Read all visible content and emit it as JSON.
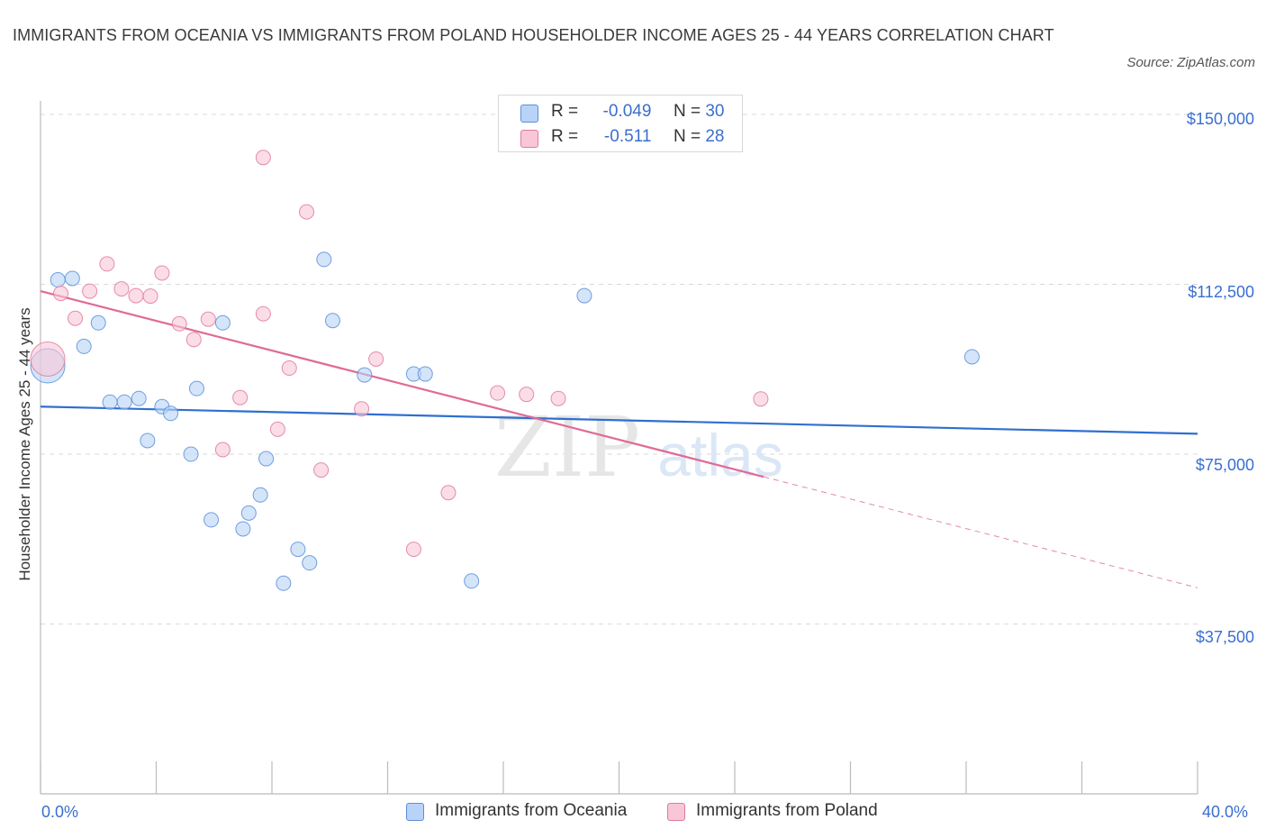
{
  "title": "IMMIGRANTS FROM OCEANIA VS IMMIGRANTS FROM POLAND HOUSEHOLDER INCOME AGES 25 - 44 YEARS CORRELATION CHART",
  "source": "Source: ZipAtlas.com",
  "watermark": {
    "zip": "ZIP",
    "atlas": "atlas"
  },
  "legend": {
    "r_label": "R =",
    "n_label": "N =",
    "rows": [
      {
        "r": "-0.049",
        "n": "30"
      },
      {
        "r": "-0.511",
        "n": "28"
      }
    ]
  },
  "colors": {
    "oceania_fill": "#b8d3f7",
    "oceania_stroke": "#5a8fd8",
    "oceania_line": "#2f6fd0",
    "poland_fill": "#f8c6d6",
    "poland_stroke": "#e07aa0",
    "poland_line": "#e06a96",
    "axis_text": "#3a6fd0"
  },
  "chart_data": {
    "type": "scatter",
    "title": "IMMIGRANTS FROM OCEANIA VS IMMIGRANTS FROM POLAND HOUSEHOLDER INCOME AGES 25 - 44 YEARS CORRELATION CHART",
    "xlabel": "",
    "ylabel": "Householder Income Ages 25 - 44 years",
    "xlim": [
      0,
      40
    ],
    "ylim": [
      0,
      152000
    ],
    "x_tick_labels": [
      "0.0%",
      "40.0%"
    ],
    "y_ticks": [
      37500,
      75000,
      112500,
      150000
    ],
    "y_tick_labels": [
      "$37,500",
      "$75,000",
      "$112,500",
      "$150,000"
    ],
    "grid": true,
    "legend_placement": "top-center",
    "series": [
      {
        "name": "Immigrants from Oceania",
        "r": -0.049,
        "n": 30,
        "trend": {
          "x": [
            0,
            40
          ],
          "y": [
            85500,
            79500
          ]
        },
        "points": [
          {
            "x": 0.25,
            "y": 94500,
            "big": true
          },
          {
            "x": 0.6,
            "y": 113500
          },
          {
            "x": 1.1,
            "y": 113800
          },
          {
            "x": 2.0,
            "y": 104000
          },
          {
            "x": 1.5,
            "y": 98800
          },
          {
            "x": 2.4,
            "y": 86500
          },
          {
            "x": 2.9,
            "y": 86500
          },
          {
            "x": 3.4,
            "y": 87300
          },
          {
            "x": 4.2,
            "y": 85500
          },
          {
            "x": 4.5,
            "y": 84000
          },
          {
            "x": 3.7,
            "y": 78000
          },
          {
            "x": 5.4,
            "y": 89500
          },
          {
            "x": 5.2,
            "y": 75000
          },
          {
            "x": 6.3,
            "y": 104000
          },
          {
            "x": 5.9,
            "y": 60500
          },
          {
            "x": 7.0,
            "y": 58500
          },
          {
            "x": 7.2,
            "y": 62000
          },
          {
            "x": 7.8,
            "y": 74000
          },
          {
            "x": 7.6,
            "y": 66000
          },
          {
            "x": 9.8,
            "y": 118000
          },
          {
            "x": 10.1,
            "y": 104500
          },
          {
            "x": 8.9,
            "y": 54000
          },
          {
            "x": 9.3,
            "y": 51000
          },
          {
            "x": 8.4,
            "y": 46500
          },
          {
            "x": 11.2,
            "y": 92500
          },
          {
            "x": 12.9,
            "y": 92700
          },
          {
            "x": 13.3,
            "y": 92700
          },
          {
            "x": 14.9,
            "y": 47000
          },
          {
            "x": 18.8,
            "y": 110000
          },
          {
            "x": 32.2,
            "y": 96500
          }
        ]
      },
      {
        "name": "Immigrants from Poland",
        "r": -0.511,
        "n": 28,
        "trend": {
          "x": [
            0,
            25
          ],
          "y": [
            111000,
            70000
          ]
        },
        "trend_extension": {
          "x": [
            25,
            40
          ],
          "y": [
            70000,
            45500
          ]
        },
        "points": [
          {
            "x": 0.25,
            "y": 96000,
            "big": true
          },
          {
            "x": 0.7,
            "y": 110500
          },
          {
            "x": 1.2,
            "y": 105000
          },
          {
            "x": 1.7,
            "y": 111000
          },
          {
            "x": 2.3,
            "y": 117000
          },
          {
            "x": 2.8,
            "y": 111500
          },
          {
            "x": 3.3,
            "y": 110000
          },
          {
            "x": 3.8,
            "y": 109900
          },
          {
            "x": 4.2,
            "y": 115000
          },
          {
            "x": 4.8,
            "y": 103800
          },
          {
            "x": 5.3,
            "y": 100300
          },
          {
            "x": 5.8,
            "y": 104800
          },
          {
            "x": 6.3,
            "y": 76000
          },
          {
            "x": 6.9,
            "y": 87500
          },
          {
            "x": 7.7,
            "y": 140500
          },
          {
            "x": 7.7,
            "y": 106000
          },
          {
            "x": 8.6,
            "y": 94000
          },
          {
            "x": 8.2,
            "y": 80500
          },
          {
            "x": 9.2,
            "y": 128500
          },
          {
            "x": 9.7,
            "y": 71500
          },
          {
            "x": 11.1,
            "y": 85000
          },
          {
            "x": 11.6,
            "y": 96000
          },
          {
            "x": 12.9,
            "y": 54000
          },
          {
            "x": 14.1,
            "y": 66500
          },
          {
            "x": 15.8,
            "y": 88500
          },
          {
            "x": 16.8,
            "y": 88200
          },
          {
            "x": 17.9,
            "y": 87300
          },
          {
            "x": 24.9,
            "y": 87200
          }
        ]
      }
    ]
  }
}
